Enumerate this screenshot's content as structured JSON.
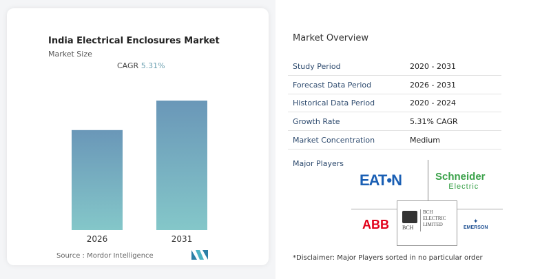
{
  "left": {
    "title": "India Electrical Enclosures Market",
    "subtitle": "Market Size",
    "cagr_label": "CAGR",
    "cagr_value": "5.31%",
    "source": "Source :  Mordor Intelligence"
  },
  "chart_data": {
    "type": "bar",
    "categories": [
      "2026",
      "2031"
    ],
    "values": [
      1,
      1.295
    ],
    "title": "",
    "xlabel": "",
    "ylabel": "",
    "grid": false,
    "colors": {
      "top": "#6a97b8",
      "bottom": "#84c7c9"
    }
  },
  "right": {
    "title": "Market Overview",
    "rows": [
      {
        "label": "Study Period",
        "value": "2020 - 2031"
      },
      {
        "label": "Forecast Data Period",
        "value": "2026 - 2031"
      },
      {
        "label": "Historical Data Period",
        "value": "2020 - 2024"
      },
      {
        "label": "Growth Rate",
        "value": "5.31% CAGR"
      },
      {
        "label": "Market Concentration",
        "value": "Medium"
      }
    ],
    "major_players_label": "Major Players",
    "players": [
      "EATON",
      "Schneider Electric",
      "ABB",
      "BCH Electric Limited",
      "Emerson"
    ],
    "logo_text": {
      "eaton": "EAT•N",
      "schneider_1": "Schneider",
      "schneider_2": "Electric",
      "abb": "ABB",
      "bch_1": "BCH",
      "bch_2": "ELECTRIC",
      "bch_3": "LIMITED",
      "bch_small": "BCH",
      "emerson": "EMERSON"
    },
    "disclaimer": "*Disclaimer: Major Players sorted in no particular order"
  }
}
